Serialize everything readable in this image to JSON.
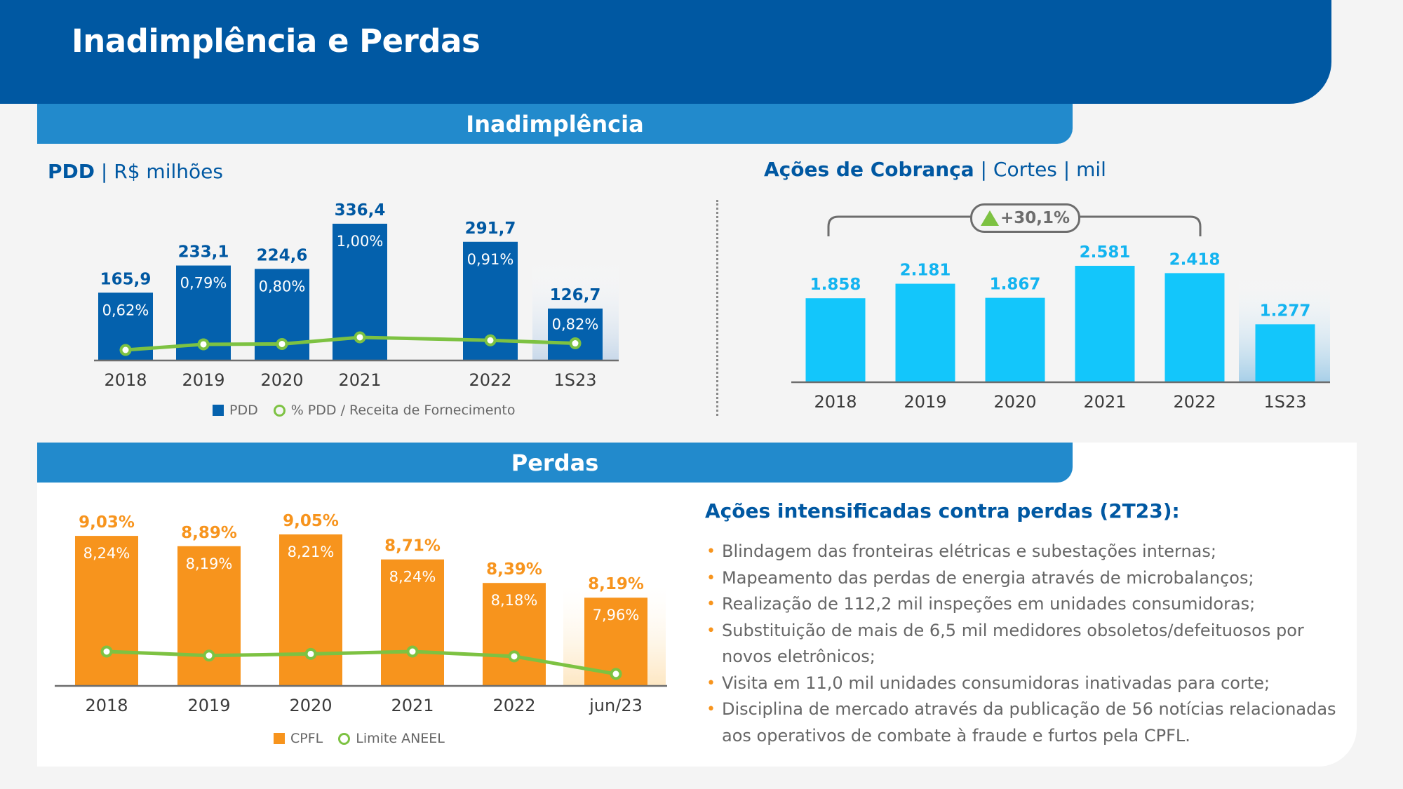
{
  "page": {
    "title": "Inadimplência e Perdas",
    "sections": {
      "inadimplencia": "Inadimplência",
      "perdas": "Perdas"
    }
  },
  "colors": {
    "header": "#0058a2",
    "section_bar": "#228acc",
    "pdd_bar": "#0461ad",
    "cobranca_bar": "#13c6fb",
    "perdas_bar": "#f7941d",
    "line": "#7dc242"
  },
  "pdd_chart": {
    "title_bold": "PDD",
    "title_rest": " | R$ milhões",
    "legend": {
      "bar": "PDD",
      "line": "% PDD / Receita de Fornecimento"
    }
  },
  "acoes_chart": {
    "title_bold": "Ações de Cobrança",
    "title_rest": " | Cortes | mil",
    "badge": {
      "icon": "triangle-up-icon",
      "text": "+30,1%"
    }
  },
  "perdas_chart": {
    "legend": {
      "bar": "CPFL",
      "line": "Limite ANEEL"
    }
  },
  "actions": {
    "title": "Ações intensificadas contra perdas (2T23):",
    "items": [
      "Blindagem das fronteiras elétricas e subestações internas;",
      "Mapeamento das perdas de energia através de microbalanços;",
      "Realização de 112,2 mil inspeções em unidades consumidoras;",
      "Substituição de mais de 6,5 mil medidores obsoletos/defeituosos por novos eletrônicos;",
      "Visita em 11,0 mil unidades consumidoras inativadas para corte;",
      "Disciplina de mercado através da publicação de 56 notícias relacionadas aos operativos de combate à fraude e furtos pela CPFL."
    ]
  },
  "chart_data": [
    {
      "id": "pdd",
      "type": "bar",
      "title": "PDD | R$ milhões",
      "categories": [
        "2018",
        "2019",
        "2020",
        "2021",
        "2022",
        "1S23"
      ],
      "series": [
        {
          "name": "PDD",
          "type": "bar",
          "values": [
            165.9,
            233.1,
            224.6,
            336.4,
            291.7,
            126.7
          ],
          "labels": [
            "165,9",
            "233,1",
            "224,6",
            "336,4",
            "291,7",
            "126,7"
          ]
        },
        {
          "name": "% PDD / Receita de Fornecimento",
          "type": "line",
          "values": [
            0.62,
            0.79,
            0.8,
            1.0,
            0.91,
            0.82
          ],
          "labels": [
            "0,62%",
            "0,79%",
            "0,80%",
            "1,00%",
            "0,91%",
            "0,82%"
          ]
        }
      ],
      "highlight_category": "1S23",
      "legend": "bottom"
    },
    {
      "id": "acoes",
      "type": "bar",
      "title": "Ações de Cobrança | Cortes | mil",
      "categories": [
        "2018",
        "2019",
        "2020",
        "2021",
        "2022",
        "1S23"
      ],
      "series": [
        {
          "name": "Cortes",
          "type": "bar",
          "values": [
            1858,
            2181,
            1867,
            2581,
            2418,
            1277
          ],
          "labels": [
            "1.858",
            "2.181",
            "1.867",
            "2.581",
            "2.418",
            "1.277"
          ]
        }
      ],
      "annotation": {
        "text": "+30,1%",
        "from": "2018",
        "to": "2022",
        "direction": "up"
      },
      "highlight_category": "1S23"
    },
    {
      "id": "perdas",
      "type": "bar",
      "title": "Perdas",
      "categories": [
        "2018",
        "2019",
        "2020",
        "2021",
        "2022",
        "jun/23"
      ],
      "series": [
        {
          "name": "CPFL",
          "type": "bar",
          "values": [
            9.03,
            8.89,
            9.05,
            8.71,
            8.39,
            8.19
          ],
          "labels": [
            "9,03%",
            "8,89%",
            "9,05%",
            "8,71%",
            "8,39%",
            "8,19%"
          ]
        },
        {
          "name": "Limite ANEEL",
          "type": "line",
          "values": [
            8.24,
            8.19,
            8.21,
            8.24,
            8.18,
            7.96
          ],
          "labels": [
            "8,24%",
            "8,19%",
            "8,21%",
            "8,24%",
            "8,18%",
            "7,96%"
          ]
        }
      ],
      "highlight_category": "jun/23",
      "legend": "bottom"
    }
  ]
}
